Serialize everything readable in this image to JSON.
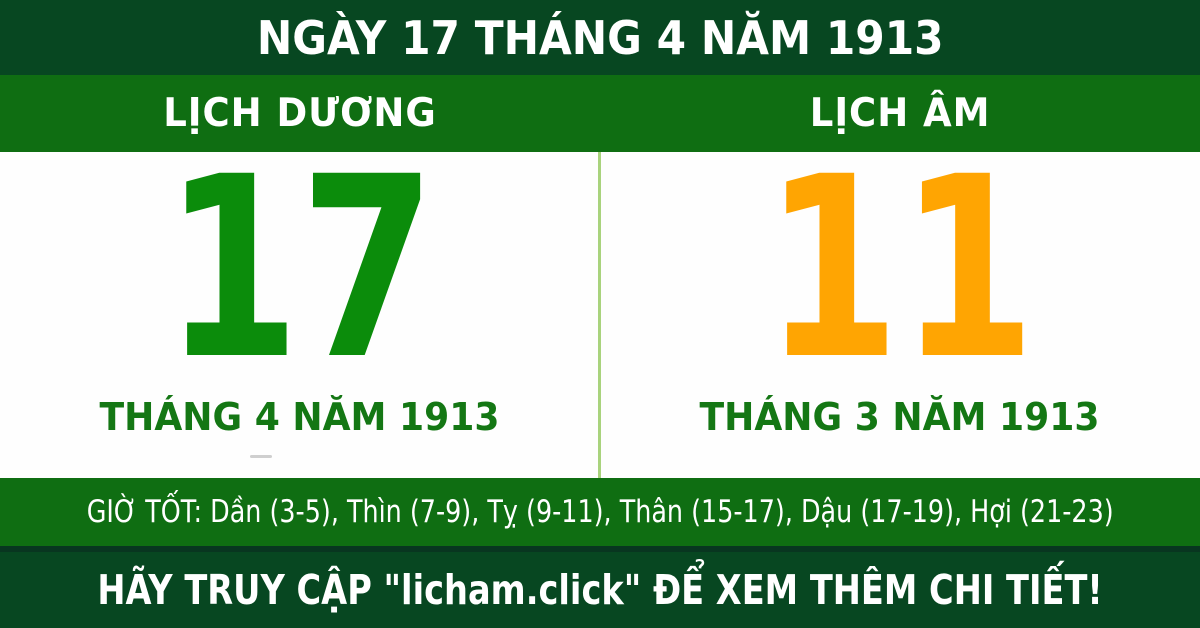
{
  "header": {
    "title": "NGÀY 17 THÁNG 4 NĂM 1913"
  },
  "tabs": {
    "solar_label": "LỊCH DƯƠNG",
    "lunar_label": "LỊCH ÂM"
  },
  "solar": {
    "day": "17",
    "month_year": "THÁNG 4 NĂM 1913"
  },
  "lunar": {
    "day": "11",
    "month_year": "THÁNG 3 NĂM 1913"
  },
  "good_hours": {
    "text": "GIỜ TỐT: Dần (3-5), Thìn (7-9), Tỵ (9-11), Thân (15-17), Dậu (17-19), Hợi (21-23)"
  },
  "footer": {
    "cta_text": "HÃY TRUY CẬP \"licham.click\" ĐỂ XEM THÊM CHI TIẾT!"
  },
  "colors": {
    "dark_green": "#074721",
    "bright_green": "#0f6e12",
    "solar_day_green": "#0b8c0b",
    "lunar_day_orange": "#ffa502",
    "month_text_green": "#147714",
    "divider_light_green": "#a9d37d",
    "footer_edge_green": "#083620"
  }
}
